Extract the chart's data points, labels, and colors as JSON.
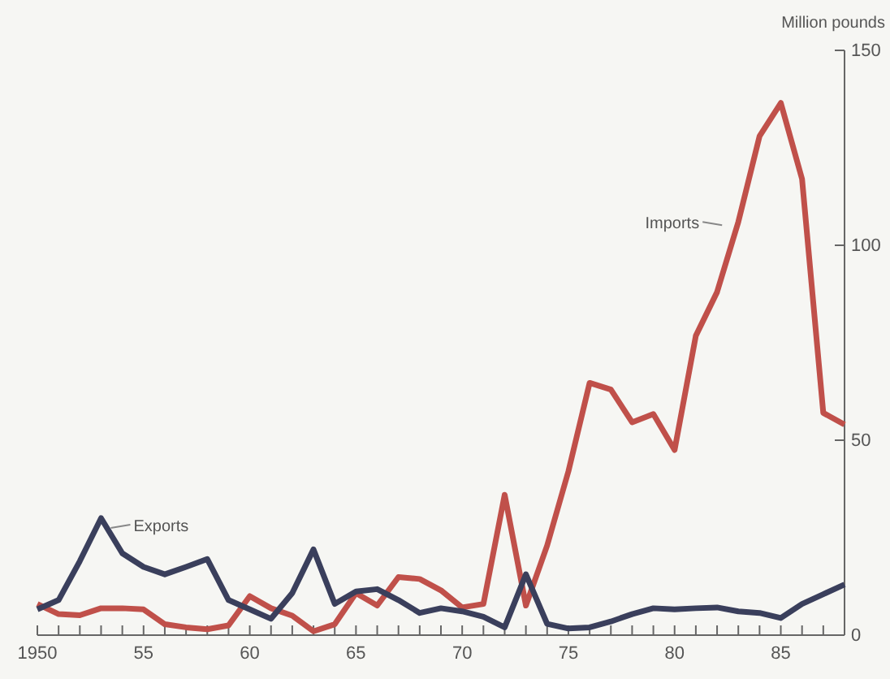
{
  "chart_data": {
    "type": "line",
    "ylabel": "Million pounds",
    "x": [
      1950,
      1951,
      1952,
      1953,
      1954,
      1955,
      1956,
      1957,
      1958,
      1959,
      1960,
      1961,
      1962,
      1963,
      1964,
      1965,
      1966,
      1967,
      1968,
      1969,
      1970,
      1971,
      1972,
      1973,
      1974,
      1975,
      1976,
      1977,
      1978,
      1979,
      1980,
      1981,
      1982,
      1983,
      1984,
      1985,
      1986,
      1987,
      1988
    ],
    "series": [
      {
        "name": "Imports",
        "color": "#c0504a",
        "values": [
          8,
          5.4,
          5.1,
          6.9,
          6.9,
          6.6,
          2.8,
          2,
          1.5,
          2.5,
          10,
          6.9,
          5,
          1,
          2.8,
          10.8,
          7.6,
          14.9,
          14.4,
          11.5,
          7.1,
          8,
          36,
          7.6,
          23,
          42,
          64.7,
          63,
          54.6,
          56.7,
          47.5,
          76.8,
          88,
          106,
          128,
          136.5,
          117,
          57,
          54
        ]
      },
      {
        "name": "Exports",
        "color": "#3a3f5c",
        "values": [
          6.6,
          9,
          19,
          30,
          21,
          17.5,
          15.6,
          17.5,
          19.5,
          9,
          6.6,
          4.2,
          10.8,
          22,
          8,
          11.2,
          11.8,
          9,
          5.7,
          6.9,
          6.1,
          4.7,
          2,
          15.6,
          2.9,
          1.7,
          2,
          3.5,
          5.4,
          6.9,
          6.6,
          6.9,
          7.1,
          6.1,
          5.7,
          4.4,
          8,
          10.5,
          13
        ]
      }
    ],
    "xlim": [
      1950,
      1988
    ],
    "xticks": [
      1950,
      {
        "value": 1951,
        "label": null
      },
      {
        "value": 1952,
        "label": null
      },
      {
        "value": 1953,
        "label": null
      },
      {
        "value": 1954,
        "label": null
      },
      {
        "value": 1955,
        "label": "55"
      },
      {
        "value": 1956,
        "label": null
      },
      {
        "value": 1957,
        "label": null
      },
      {
        "value": 1958,
        "label": null
      },
      {
        "value": 1959,
        "label": null
      },
      {
        "value": 1960,
        "label": "60"
      },
      {
        "value": 1961,
        "label": null
      },
      {
        "value": 1962,
        "label": null
      },
      {
        "value": 1963,
        "label": null
      },
      {
        "value": 1964,
        "label": null
      },
      {
        "value": 1965,
        "label": "65"
      },
      {
        "value": 1966,
        "label": null
      },
      {
        "value": 1967,
        "label": null
      },
      {
        "value": 1968,
        "label": null
      },
      {
        "value": 1969,
        "label": null
      },
      {
        "value": 1970,
        "label": "70"
      },
      {
        "value": 1971,
        "label": null
      },
      {
        "value": 1972,
        "label": null
      },
      {
        "value": 1973,
        "label": null
      },
      {
        "value": 1974,
        "label": null
      },
      {
        "value": 1975,
        "label": "75"
      },
      {
        "value": 1976,
        "label": null
      },
      {
        "value": 1977,
        "label": null
      },
      {
        "value": 1978,
        "label": null
      },
      {
        "value": 1979,
        "label": null
      },
      {
        "value": 1980,
        "label": "80"
      },
      {
        "value": 1981,
        "label": null
      },
      {
        "value": 1982,
        "label": null
      },
      {
        "value": 1983,
        "label": null
      },
      {
        "value": 1984,
        "label": null
      },
      {
        "value": 1985,
        "label": "85"
      },
      {
        "value": 1986,
        "label": null
      },
      {
        "value": 1987,
        "label": null
      },
      {
        "value": 1988,
        "label": null
      }
    ],
    "ylim": [
      0,
      150
    ],
    "yticks": [
      0,
      50,
      100,
      150
    ],
    "grid": false,
    "legend": false,
    "marker": "none",
    "line_style": "solid"
  }
}
